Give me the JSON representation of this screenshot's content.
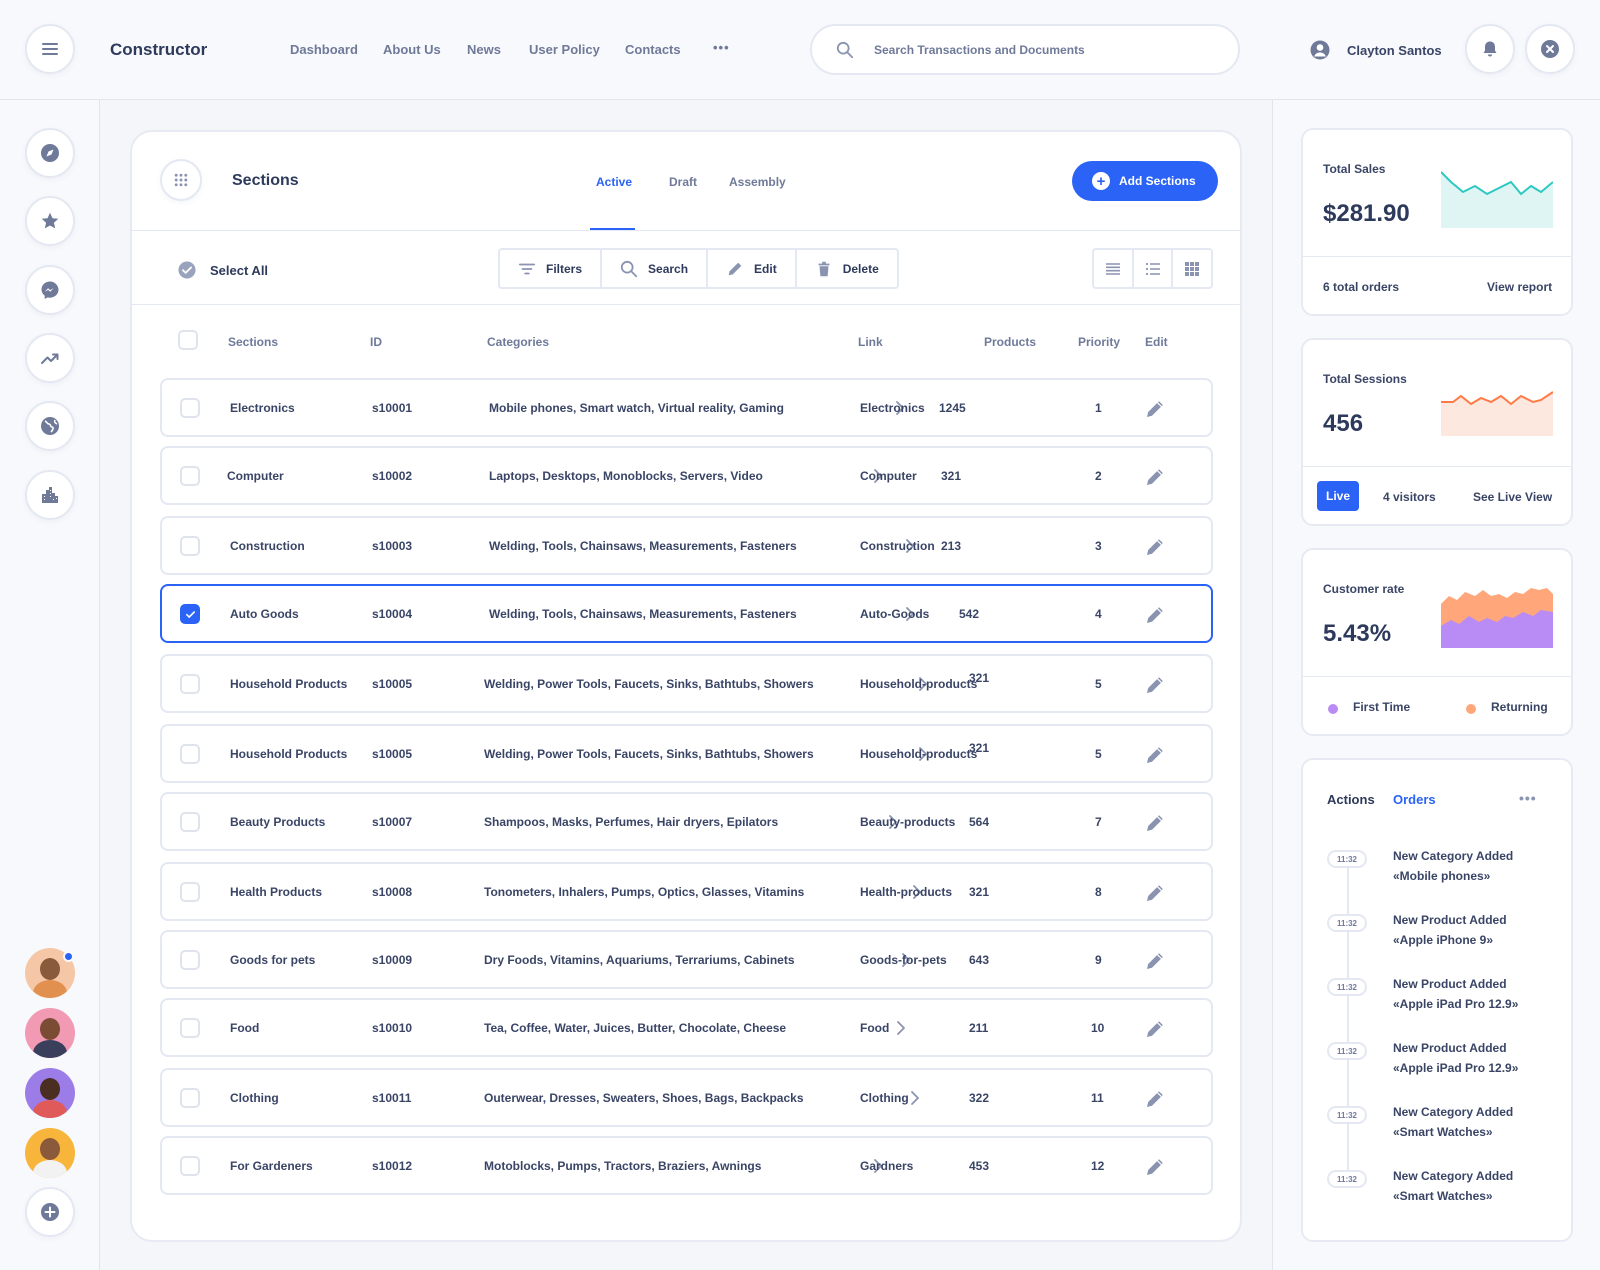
{
  "header": {
    "app_title": "Constructor",
    "nav": [
      "Dashboard",
      "About Us",
      "News",
      "User Policy",
      "Contacts"
    ],
    "more_label": "•••",
    "search_placeholder": "Search Transactions and Documents",
    "user_name": "Clayton Santos"
  },
  "sidebar": {
    "icons": [
      "compass-icon",
      "star-icon",
      "messenger-icon",
      "trending-icon",
      "globe-icon",
      "city-icon"
    ],
    "add_icon": "plus-icon"
  },
  "sections_panel": {
    "title": "Sections",
    "tabs": [
      "Active",
      "Draft",
      "Assembly"
    ],
    "active_tab": "Active",
    "add_label": "Add Sections",
    "select_all_label": "Select All",
    "tools": [
      "Filters",
      "Search",
      "Edit",
      "Delete"
    ],
    "columns": [
      "Sections",
      "ID",
      "Categories",
      "Link",
      "Products",
      "Priority",
      "Edit"
    ],
    "rows": [
      {
        "name": "Electronics",
        "id": "s10001",
        "categories": "Mobile phones, Smart watch, Virtual reality, Gaming",
        "link": "Electronics",
        "products": "1245",
        "priority": "1",
        "checked": false
      },
      {
        "name": "Computer",
        "id": "s10002",
        "categories": "Laptops, Desktops, Monoblocks, Servers, Video",
        "link": "Computer",
        "products": "321",
        "priority": "2",
        "checked": false
      },
      {
        "name": "Construction",
        "id": "s10003",
        "categories": "Welding, Tools, Chainsaws, Measurements, Fasteners",
        "link": "Construction",
        "products": "213",
        "priority": "3",
        "checked": false
      },
      {
        "name": "Auto Goods",
        "id": "s10004",
        "categories": "Welding, Tools, Chainsaws, Measurements, Fasteners",
        "link": "Auto-Goods",
        "products": "542",
        "priority": "4",
        "checked": true
      },
      {
        "name": "Household Products",
        "id": "s10005",
        "categories": "Welding, Power Tools, Faucets, Sinks, Bathtubs, Showers",
        "link": "Household-products",
        "products": "321",
        "priority": "5",
        "checked": false
      },
      {
        "name": "Household Products",
        "id": "s10005",
        "categories": "Welding, Power Tools, Faucets, Sinks, Bathtubs, Showers",
        "link": "Household-products",
        "products": "321",
        "priority": "5",
        "checked": false
      },
      {
        "name": "Beauty Products",
        "id": "s10007",
        "categories": "Shampoos, Masks, Perfumes, Hair dryers, Epilators",
        "link": "Beauty-products",
        "products": "564",
        "priority": "7",
        "checked": false
      },
      {
        "name": "Health Products",
        "id": "s10008",
        "categories": "Tonometers, Inhalers, Pumps, Optics, Glasses, Vitamins",
        "link": "Health-products",
        "products": "321",
        "priority": "8",
        "checked": false
      },
      {
        "name": "Goods for pets",
        "id": "s10009",
        "categories": "Dry Foods, Vitamins, Aquariums, Terrariums, Cabinets",
        "link": "Goods-for-pets",
        "products": "643",
        "priority": "9",
        "checked": false
      },
      {
        "name": "Food",
        "id": "s10010",
        "categories": "Tea, Coffee, Water, Juices, Butter, Chocolate, Cheese",
        "link": "Food",
        "products": "211",
        "priority": "10",
        "checked": false
      },
      {
        "name": "Clothing",
        "id": "s10011",
        "categories": "Outerwear, Dresses, Sweaters, Shoes, Bags, Backpacks",
        "link": "Clothing",
        "products": "322",
        "priority": "11",
        "checked": false
      },
      {
        "name": "For Gardeners",
        "id": "s10012",
        "categories": "Motoblocks, Pumps, Tractors, Braziers, Awnings",
        "link": "Gardners",
        "products": "453",
        "priority": "12",
        "checked": false
      }
    ]
  },
  "stats": {
    "sales": {
      "label": "Total Sales",
      "value": "$281.90",
      "orders": "6 total orders",
      "link": "View report",
      "color": "#2cc9c0"
    },
    "sessions": {
      "label": "Total Sessions",
      "value": "456",
      "live": "Live",
      "visitors": "4 visitors",
      "link": "See Live View",
      "color": "#ff7a45"
    },
    "customer": {
      "label": "Customer rate",
      "value": "5.43%",
      "legend": [
        "First Time",
        "Returning"
      ],
      "colors": [
        "#b98cf5",
        "#ffa77a"
      ]
    }
  },
  "activity": {
    "tabs": [
      "Actions",
      "Orders"
    ],
    "active_tab": "Orders",
    "more_label": "•••",
    "items": [
      {
        "time": "11:32",
        "title": "New Category Added",
        "detail": "«Mobile phones»"
      },
      {
        "time": "11:32",
        "title": "New Product Added",
        "detail": "«Apple iPhone 9»"
      },
      {
        "time": "11:32",
        "title": "New Product Added",
        "detail": "«Apple iPad Pro 12.9»"
      },
      {
        "time": "11:32",
        "title": "New Product Added",
        "detail": "«Apple iPad Pro 12.9»"
      },
      {
        "time": "11:32",
        "title": "New Category Added",
        "detail": "«Smart Watches»"
      },
      {
        "time": "11:32",
        "title": "New Category Added",
        "detail": "«Smart Watches»"
      }
    ]
  },
  "colors": {
    "accent": "#2a63f5",
    "text": "#3a4566",
    "muted": "#6f7a99",
    "border": "#e4e8f2"
  }
}
